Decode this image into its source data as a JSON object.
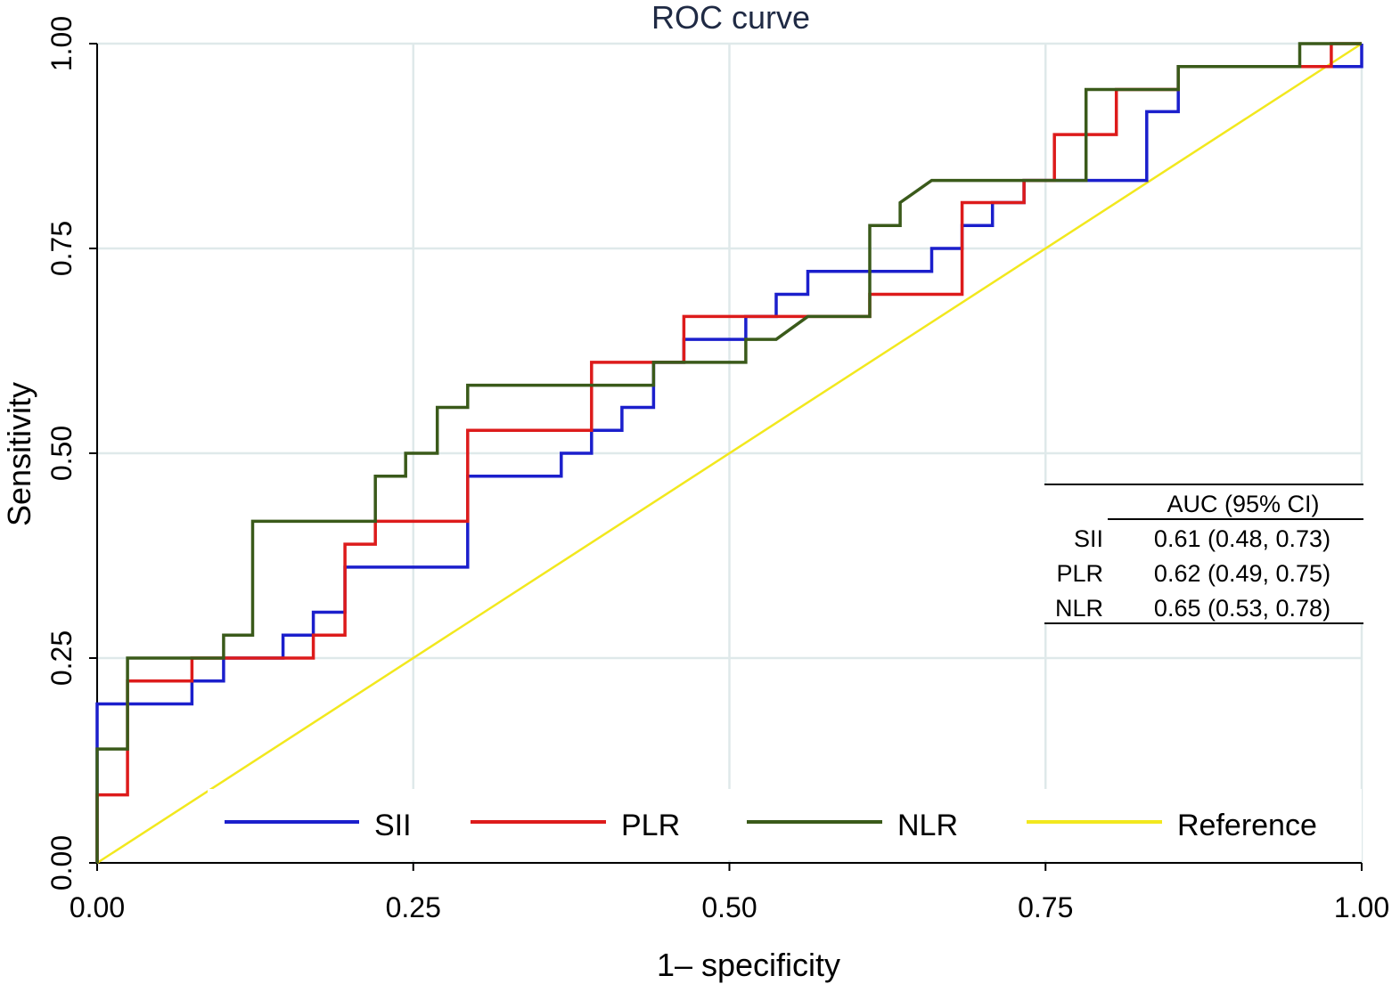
{
  "chart_data": {
    "type": "line",
    "title": "ROC curve",
    "xlabel": "1– specificity",
    "ylabel": "Sensitivity",
    "xlim": [
      0,
      1
    ],
    "ylim": [
      0,
      1
    ],
    "x_ticks": [
      "0.00",
      "0.25",
      "0.50",
      "0.75",
      "1.00"
    ],
    "y_ticks": [
      "0.00",
      "0.25",
      "0.50",
      "0.75",
      "1.00"
    ],
    "grid": true,
    "legend_position": "bottom-inside",
    "series": [
      {
        "name": "SII",
        "color": "#1b1fcc",
        "points": [
          [
            0,
            0
          ],
          [
            0,
            0.194
          ],
          [
            0.075,
            0.194
          ],
          [
            0.075,
            0.222
          ],
          [
            0.1,
            0.222
          ],
          [
            0.1,
            0.25
          ],
          [
            0.147,
            0.25
          ],
          [
            0.147,
            0.278
          ],
          [
            0.171,
            0.278
          ],
          [
            0.171,
            0.306
          ],
          [
            0.196,
            0.306
          ],
          [
            0.196,
            0.361
          ],
          [
            0.293,
            0.361
          ],
          [
            0.293,
            0.472
          ],
          [
            0.367,
            0.472
          ],
          [
            0.367,
            0.5
          ],
          [
            0.391,
            0.5
          ],
          [
            0.391,
            0.528
          ],
          [
            0.415,
            0.528
          ],
          [
            0.415,
            0.556
          ],
          [
            0.44,
            0.556
          ],
          [
            0.44,
            0.611
          ],
          [
            0.464,
            0.611
          ],
          [
            0.464,
            0.639
          ],
          [
            0.513,
            0.639
          ],
          [
            0.513,
            0.667
          ],
          [
            0.537,
            0.667
          ],
          [
            0.537,
            0.694
          ],
          [
            0.562,
            0.694
          ],
          [
            0.562,
            0.722
          ],
          [
            0.66,
            0.722
          ],
          [
            0.66,
            0.75
          ],
          [
            0.684,
            0.75
          ],
          [
            0.684,
            0.778
          ],
          [
            0.708,
            0.778
          ],
          [
            0.708,
            0.806
          ],
          [
            0.733,
            0.806
          ],
          [
            0.733,
            0.833
          ],
          [
            0.83,
            0.833
          ],
          [
            0.83,
            0.917
          ],
          [
            0.855,
            0.917
          ],
          [
            0.855,
            0.972
          ],
          [
            0.976,
            0.972
          ],
          [
            0.976,
            0.972
          ],
          [
            1.0,
            0.972
          ],
          [
            1.0,
            1.0
          ]
        ]
      },
      {
        "name": "PLR",
        "color": "#dd1b1b",
        "points": [
          [
            0,
            0
          ],
          [
            0,
            0.083
          ],
          [
            0.024,
            0.083
          ],
          [
            0.024,
            0.222
          ],
          [
            0.075,
            0.222
          ],
          [
            0.075,
            0.25
          ],
          [
            0.171,
            0.25
          ],
          [
            0.171,
            0.278
          ],
          [
            0.196,
            0.278
          ],
          [
            0.196,
            0.389
          ],
          [
            0.22,
            0.389
          ],
          [
            0.22,
            0.417
          ],
          [
            0.293,
            0.417
          ],
          [
            0.293,
            0.528
          ],
          [
            0.391,
            0.528
          ],
          [
            0.391,
            0.611
          ],
          [
            0.464,
            0.611
          ],
          [
            0.464,
            0.667
          ],
          [
            0.611,
            0.667
          ],
          [
            0.611,
            0.694
          ],
          [
            0.684,
            0.694
          ],
          [
            0.684,
            0.806
          ],
          [
            0.733,
            0.806
          ],
          [
            0.733,
            0.833
          ],
          [
            0.757,
            0.833
          ],
          [
            0.757,
            0.889
          ],
          [
            0.806,
            0.889
          ],
          [
            0.806,
            0.944
          ],
          [
            0.855,
            0.944
          ],
          [
            0.855,
            0.972
          ],
          [
            0.976,
            0.972
          ],
          [
            0.976,
            1.0
          ],
          [
            1.0,
            1.0
          ]
        ]
      },
      {
        "name": "NLR",
        "color": "#3a5a1a",
        "points": [
          [
            0,
            0
          ],
          [
            0,
            0.139
          ],
          [
            0.024,
            0.139
          ],
          [
            0.024,
            0.25
          ],
          [
            0.1,
            0.25
          ],
          [
            0.1,
            0.278
          ],
          [
            0.123,
            0.278
          ],
          [
            0.123,
            0.417
          ],
          [
            0.22,
            0.417
          ],
          [
            0.22,
            0.472
          ],
          [
            0.244,
            0.472
          ],
          [
            0.244,
            0.5
          ],
          [
            0.269,
            0.5
          ],
          [
            0.269,
            0.556
          ],
          [
            0.293,
            0.556
          ],
          [
            0.293,
            0.583
          ],
          [
            0.44,
            0.583
          ],
          [
            0.44,
            0.611
          ],
          [
            0.513,
            0.611
          ],
          [
            0.513,
            0.639
          ],
          [
            0.537,
            0.639
          ],
          [
            0.562,
            0.667
          ],
          [
            0.611,
            0.667
          ],
          [
            0.611,
            0.778
          ],
          [
            0.635,
            0.778
          ],
          [
            0.635,
            0.806
          ],
          [
            0.66,
            0.833
          ],
          [
            0.782,
            0.833
          ],
          [
            0.782,
            0.944
          ],
          [
            0.855,
            0.944
          ],
          [
            0.855,
            0.972
          ],
          [
            0.951,
            0.972
          ],
          [
            0.951,
            1.0
          ],
          [
            1.0,
            1.0
          ]
        ]
      },
      {
        "name": "Reference",
        "color": "#f2e81e",
        "points": [
          [
            0,
            0
          ],
          [
            1,
            1
          ]
        ]
      }
    ],
    "auc_table": {
      "header": "AUC (95% CI)",
      "rows": [
        {
          "label": "SII",
          "value": "0.61 (0.48, 0.73)"
        },
        {
          "label": "PLR",
          "value": "0.62 (0.49, 0.75)"
        },
        {
          "label": "NLR",
          "value": "0.65 (0.53, 0.78)"
        }
      ]
    }
  }
}
